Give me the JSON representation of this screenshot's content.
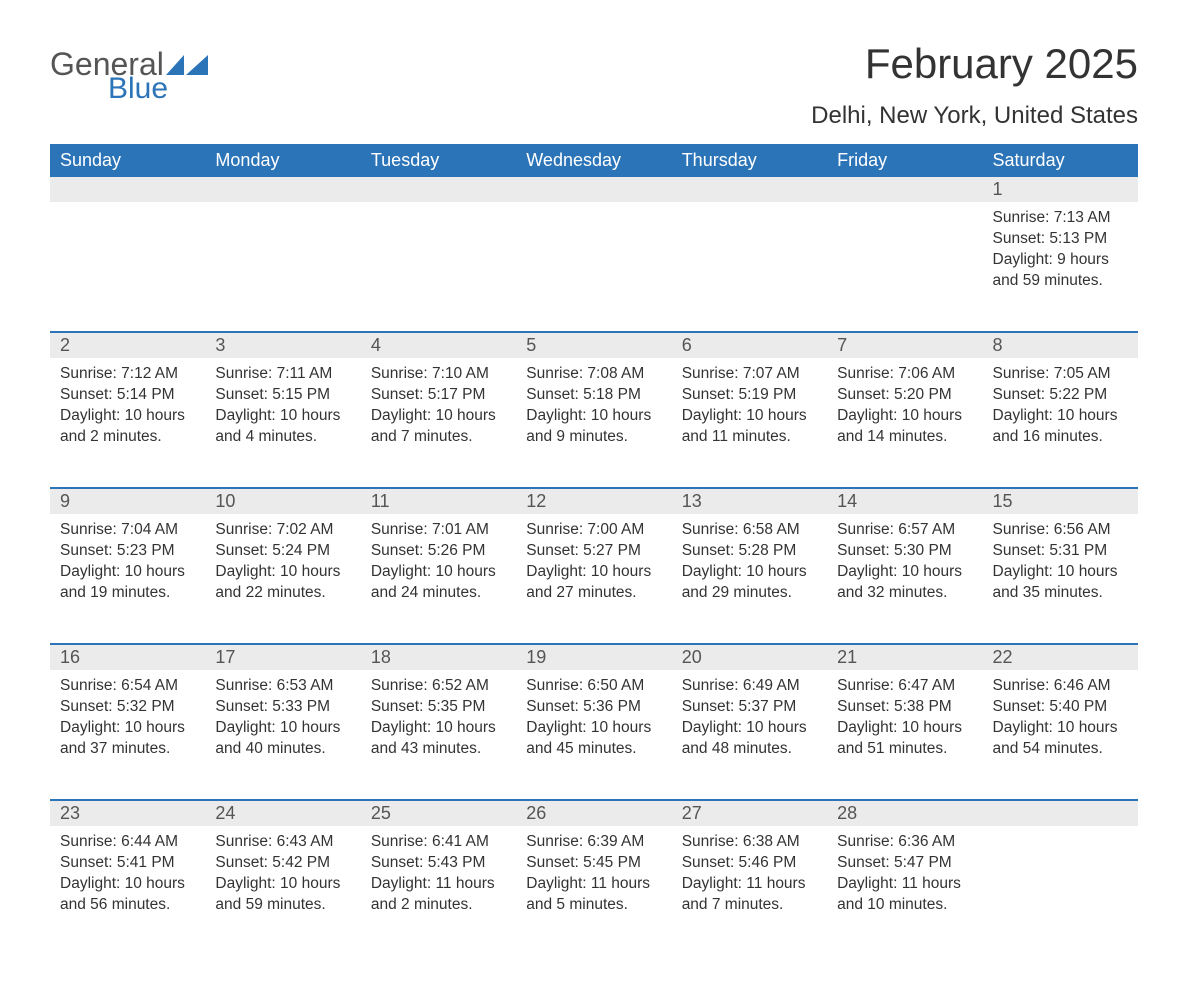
{
  "logo": {
    "text_general": "General",
    "text_blue": "Blue",
    "shape_color": "#2b74b8",
    "general_color": "#555555",
    "blue_color": "#2b74b8"
  },
  "title": "February 2025",
  "location": "Delhi, New York, United States",
  "header_bg": "#2b74b8",
  "header_text_color": "#ffffff",
  "daynum_bg": "#ebebeb",
  "daynum_color": "#555555",
  "body_text_color": "#333333",
  "row_separator_color": "#2b74b8",
  "background_color": "#ffffff",
  "title_fontsize": 42,
  "location_fontsize": 24,
  "header_fontsize": 18,
  "daynum_fontsize": 18,
  "content_fontsize": 15.5,
  "days_of_week": [
    "Sunday",
    "Monday",
    "Tuesday",
    "Wednesday",
    "Thursday",
    "Friday",
    "Saturday"
  ],
  "weeks": [
    [
      null,
      null,
      null,
      null,
      null,
      null,
      {
        "n": "1",
        "sunrise": "Sunrise: 7:13 AM",
        "sunset": "Sunset: 5:13 PM",
        "daylight": "Daylight: 9 hours and 59 minutes."
      }
    ],
    [
      {
        "n": "2",
        "sunrise": "Sunrise: 7:12 AM",
        "sunset": "Sunset: 5:14 PM",
        "daylight": "Daylight: 10 hours and 2 minutes."
      },
      {
        "n": "3",
        "sunrise": "Sunrise: 7:11 AM",
        "sunset": "Sunset: 5:15 PM",
        "daylight": "Daylight: 10 hours and 4 minutes."
      },
      {
        "n": "4",
        "sunrise": "Sunrise: 7:10 AM",
        "sunset": "Sunset: 5:17 PM",
        "daylight": "Daylight: 10 hours and 7 minutes."
      },
      {
        "n": "5",
        "sunrise": "Sunrise: 7:08 AM",
        "sunset": "Sunset: 5:18 PM",
        "daylight": "Daylight: 10 hours and 9 minutes."
      },
      {
        "n": "6",
        "sunrise": "Sunrise: 7:07 AM",
        "sunset": "Sunset: 5:19 PM",
        "daylight": "Daylight: 10 hours and 11 minutes."
      },
      {
        "n": "7",
        "sunrise": "Sunrise: 7:06 AM",
        "sunset": "Sunset: 5:20 PM",
        "daylight": "Daylight: 10 hours and 14 minutes."
      },
      {
        "n": "8",
        "sunrise": "Sunrise: 7:05 AM",
        "sunset": "Sunset: 5:22 PM",
        "daylight": "Daylight: 10 hours and 16 minutes."
      }
    ],
    [
      {
        "n": "9",
        "sunrise": "Sunrise: 7:04 AM",
        "sunset": "Sunset: 5:23 PM",
        "daylight": "Daylight: 10 hours and 19 minutes."
      },
      {
        "n": "10",
        "sunrise": "Sunrise: 7:02 AM",
        "sunset": "Sunset: 5:24 PM",
        "daylight": "Daylight: 10 hours and 22 minutes."
      },
      {
        "n": "11",
        "sunrise": "Sunrise: 7:01 AM",
        "sunset": "Sunset: 5:26 PM",
        "daylight": "Daylight: 10 hours and 24 minutes."
      },
      {
        "n": "12",
        "sunrise": "Sunrise: 7:00 AM",
        "sunset": "Sunset: 5:27 PM",
        "daylight": "Daylight: 10 hours and 27 minutes."
      },
      {
        "n": "13",
        "sunrise": "Sunrise: 6:58 AM",
        "sunset": "Sunset: 5:28 PM",
        "daylight": "Daylight: 10 hours and 29 minutes."
      },
      {
        "n": "14",
        "sunrise": "Sunrise: 6:57 AM",
        "sunset": "Sunset: 5:30 PM",
        "daylight": "Daylight: 10 hours and 32 minutes."
      },
      {
        "n": "15",
        "sunrise": "Sunrise: 6:56 AM",
        "sunset": "Sunset: 5:31 PM",
        "daylight": "Daylight: 10 hours and 35 minutes."
      }
    ],
    [
      {
        "n": "16",
        "sunrise": "Sunrise: 6:54 AM",
        "sunset": "Sunset: 5:32 PM",
        "daylight": "Daylight: 10 hours and 37 minutes."
      },
      {
        "n": "17",
        "sunrise": "Sunrise: 6:53 AM",
        "sunset": "Sunset: 5:33 PM",
        "daylight": "Daylight: 10 hours and 40 minutes."
      },
      {
        "n": "18",
        "sunrise": "Sunrise: 6:52 AM",
        "sunset": "Sunset: 5:35 PM",
        "daylight": "Daylight: 10 hours and 43 minutes."
      },
      {
        "n": "19",
        "sunrise": "Sunrise: 6:50 AM",
        "sunset": "Sunset: 5:36 PM",
        "daylight": "Daylight: 10 hours and 45 minutes."
      },
      {
        "n": "20",
        "sunrise": "Sunrise: 6:49 AM",
        "sunset": "Sunset: 5:37 PM",
        "daylight": "Daylight: 10 hours and 48 minutes."
      },
      {
        "n": "21",
        "sunrise": "Sunrise: 6:47 AM",
        "sunset": "Sunset: 5:38 PM",
        "daylight": "Daylight: 10 hours and 51 minutes."
      },
      {
        "n": "22",
        "sunrise": "Sunrise: 6:46 AM",
        "sunset": "Sunset: 5:40 PM",
        "daylight": "Daylight: 10 hours and 54 minutes."
      }
    ],
    [
      {
        "n": "23",
        "sunrise": "Sunrise: 6:44 AM",
        "sunset": "Sunset: 5:41 PM",
        "daylight": "Daylight: 10 hours and 56 minutes."
      },
      {
        "n": "24",
        "sunrise": "Sunrise: 6:43 AM",
        "sunset": "Sunset: 5:42 PM",
        "daylight": "Daylight: 10 hours and 59 minutes."
      },
      {
        "n": "25",
        "sunrise": "Sunrise: 6:41 AM",
        "sunset": "Sunset: 5:43 PM",
        "daylight": "Daylight: 11 hours and 2 minutes."
      },
      {
        "n": "26",
        "sunrise": "Sunrise: 6:39 AM",
        "sunset": "Sunset: 5:45 PM",
        "daylight": "Daylight: 11 hours and 5 minutes."
      },
      {
        "n": "27",
        "sunrise": "Sunrise: 6:38 AM",
        "sunset": "Sunset: 5:46 PM",
        "daylight": "Daylight: 11 hours and 7 minutes."
      },
      {
        "n": "28",
        "sunrise": "Sunrise: 6:36 AM",
        "sunset": "Sunset: 5:47 PM",
        "daylight": "Daylight: 11 hours and 10 minutes."
      },
      null
    ]
  ]
}
